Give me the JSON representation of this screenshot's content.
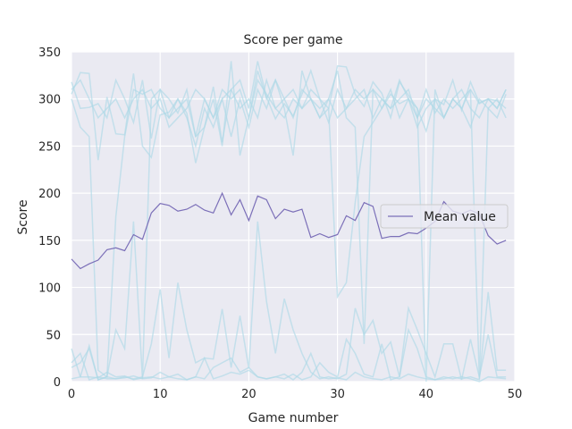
{
  "chart_data": {
    "type": "line",
    "title": "Score per game",
    "xlabel": "Game number",
    "ylabel": "Score",
    "xlim": [
      0,
      50
    ],
    "ylim": [
      0,
      350
    ],
    "xticks": [
      0,
      10,
      20,
      30,
      40,
      50
    ],
    "yticks": [
      0,
      50,
      100,
      150,
      200,
      250,
      300,
      350
    ],
    "grid": true,
    "legend": {
      "placement": "center-right",
      "entries": [
        "Mean value"
      ]
    },
    "colors": {
      "background": "#eaeaf2",
      "grid": "#ffffff",
      "individual_runs": "#add8e6",
      "mean": "#7b6fb8"
    },
    "x": [
      0,
      1,
      2,
      3,
      4,
      5,
      6,
      7,
      8,
      9,
      10,
      11,
      12,
      13,
      14,
      15,
      16,
      17,
      18,
      19,
      20,
      21,
      22,
      23,
      24,
      25,
      26,
      27,
      28,
      29,
      30,
      31,
      32,
      33,
      34,
      35,
      36,
      37,
      38,
      39,
      40,
      41,
      42,
      43,
      44,
      45,
      46,
      47,
      48,
      49
    ],
    "series": [
      {
        "name": "Mean value",
        "values": [
          130,
          120,
          125,
          129,
          140,
          142,
          139,
          156,
          151,
          179,
          189,
          187,
          181,
          183,
          188,
          182,
          179,
          200,
          177,
          193,
          171,
          197,
          193,
          173,
          183,
          180,
          183,
          153,
          157,
          153,
          156,
          176,
          171,
          190,
          186,
          152,
          154,
          154,
          158,
          157,
          163,
          170,
          191,
          181,
          178,
          182,
          178,
          155,
          146,
          150
        ]
      }
    ],
    "individual_runs": [
      [
        318,
        290,
        291,
        295,
        280,
        320,
        300,
        275,
        320,
        258,
        310,
        300,
        285,
        310,
        260,
        300,
        280,
        310,
        300,
        310,
        280,
        320,
        305,
        290,
        280,
        300,
        290,
        310,
        300,
        275,
        310,
        290,
        310,
        300,
        310,
        290,
        305,
        295,
        300,
        280,
        310,
        285,
        300,
        290,
        300,
        310,
        295,
        300,
        290,
        310
      ],
      [
        305,
        328,
        327,
        235,
        302,
        263,
        262,
        327,
        250,
        238,
        283,
        286,
        300,
        285,
        232,
        270,
        313,
        254,
        310,
        320,
        290,
        340,
        302,
        279,
        295,
        282,
        305,
        330,
        300,
        290,
        335,
        334,
        305,
        292,
        318,
        306,
        280,
        318,
        304,
        290,
        266,
        300,
        294,
        320,
        288,
        318,
        296,
        300,
        298,
        290
      ],
      [
        300,
        270,
        260,
        12,
        5,
        175,
        260,
        310,
        305,
        310,
        290,
        280,
        300,
        280,
        250,
        290,
        270,
        300,
        260,
        300,
        270,
        310,
        290,
        320,
        300,
        310,
        290,
        300,
        280,
        290,
        90,
        105,
        190,
        260,
        275,
        290,
        310,
        280,
        300,
        270,
        290,
        300,
        280,
        300,
        290,
        270,
        300,
        290,
        280,
        305
      ],
      [
        310,
        320,
        300,
        280,
        290,
        300,
        280,
        300,
        310,
        290,
        300,
        270,
        280,
        290,
        310,
        300,
        280,
        300,
        310,
        290,
        300,
        280,
        320,
        290,
        300,
        280,
        310,
        300,
        290,
        300,
        280,
        290,
        300,
        310,
        280,
        300,
        290,
        300,
        310,
        280,
        300,
        290,
        280,
        300,
        310,
        290,
        280,
        300,
        290,
        310
      ],
      [
        15,
        20,
        35,
        2,
        5,
        55,
        35,
        170,
        3,
        300,
        310,
        280,
        290,
        300,
        260,
        270,
        300,
        250,
        340,
        240,
        280,
        330,
        300,
        320,
        290,
        240,
        330,
        300,
        280,
        300,
        330,
        280,
        270,
        40,
        310,
        300,
        290,
        320,
        300,
        290,
        0,
        310,
        280,
        300,
        290,
        310,
        3,
        290,
        300,
        280
      ],
      [
        35,
        5,
        5,
        4,
        10,
        5,
        6,
        2,
        4,
        5,
        3,
        5,
        8,
        2,
        5,
        3,
        15,
        20,
        25,
        10,
        15,
        5,
        3,
        5,
        8,
        2,
        10,
        30,
        5,
        3,
        4,
        2,
        10,
        5,
        3,
        2,
        5,
        3,
        8,
        5,
        3,
        2,
        5,
        3,
        5,
        3,
        0,
        5,
        4,
        3
      ],
      [
        20,
        30,
        2,
        5,
        3,
        3,
        4,
        6,
        3,
        4,
        10,
        5,
        3,
        2,
        5,
        25,
        3,
        6,
        10,
        8,
        12,
        5,
        3,
        5,
        3,
        8,
        2,
        5,
        20,
        10,
        5,
        45,
        30,
        8,
        5,
        40,
        2,
        5,
        55,
        35,
        5,
        2,
        3,
        5,
        3,
        5,
        2,
        95,
        12,
        12
      ],
      [
        3,
        5,
        38,
        2,
        5,
        3,
        5,
        3,
        5,
        40,
        98,
        25,
        105,
        55,
        20,
        25,
        24,
        77,
        15,
        70,
        14,
        170,
        85,
        30,
        88,
        55,
        30,
        10,
        3,
        5,
        3,
        8,
        78,
        50,
        65,
        30,
        42,
        5,
        78,
        55,
        30,
        5,
        40,
        40,
        2,
        45,
        5,
        50,
        5,
        5
      ]
    ]
  }
}
